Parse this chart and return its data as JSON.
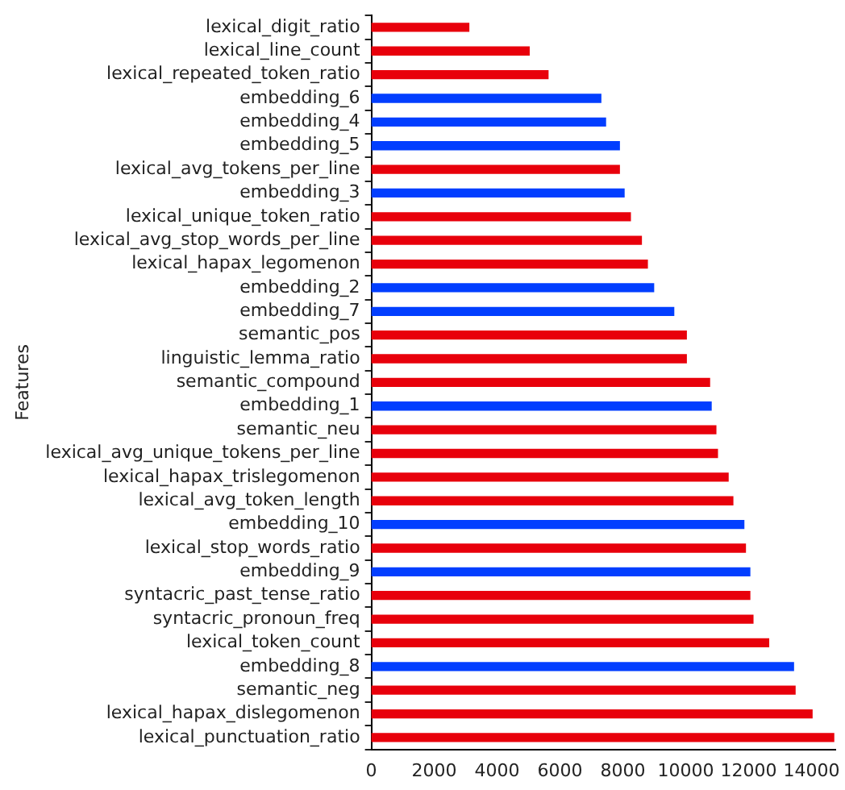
{
  "chart_data": {
    "type": "bar",
    "orientation": "horizontal",
    "ylabel": "Features",
    "categories": [
      "lexical_digit_ratio",
      "lexical_line_count",
      "lexical_repeated_token_ratio",
      "embedding_6",
      "embedding_4",
      "embedding_5",
      "lexical_avg_tokens_per_line",
      "embedding_3",
      "lexical_unique_token_ratio",
      "lexical_avg_stop_words_per_line",
      "lexical_hapax_legomenon",
      "embedding_2",
      "embedding_7",
      "semantic_pos",
      "linguistic_lemma_ratio",
      "semantic_compound",
      "embedding_1",
      "semantic_neu",
      "lexical_avg_unique_tokens_per_line",
      "lexical_hapax_trislegomenon",
      "lexical_avg_token_length",
      "embedding_10",
      "lexical_stop_words_ratio",
      "embedding_9",
      "syntacric_past_tense_ratio",
      "syntacric_pronoun_freq",
      "lexical_token_count",
      "embedding_8",
      "semantic_neg",
      "lexical_hapax_dislegomenon",
      "lexical_punctuation_ratio"
    ],
    "values": [
      3100,
      5020,
      5620,
      7300,
      7450,
      7890,
      7890,
      8040,
      8240,
      8590,
      8780,
      8980,
      9620,
      10020,
      10020,
      10760,
      10810,
      10960,
      11010,
      11350,
      11500,
      11850,
      11900,
      12040,
      12040,
      12140,
      12640,
      13430,
      13480,
      14020,
      14710
    ],
    "colors": [
      "#e8000b",
      "#e8000b",
      "#e8000b",
      "#023eff",
      "#023eff",
      "#023eff",
      "#e8000b",
      "#023eff",
      "#e8000b",
      "#e8000b",
      "#e8000b",
      "#023eff",
      "#023eff",
      "#e8000b",
      "#e8000b",
      "#e8000b",
      "#023eff",
      "#e8000b",
      "#e8000b",
      "#e8000b",
      "#e8000b",
      "#023eff",
      "#e8000b",
      "#023eff",
      "#e8000b",
      "#e8000b",
      "#e8000b",
      "#023eff",
      "#e8000b",
      "#e8000b",
      "#e8000b"
    ],
    "xlim": [
      0,
      14750
    ],
    "xticks": [
      0,
      2000,
      4000,
      6000,
      8000,
      10000,
      12000,
      14000
    ],
    "grid": false,
    "legend": false
  }
}
